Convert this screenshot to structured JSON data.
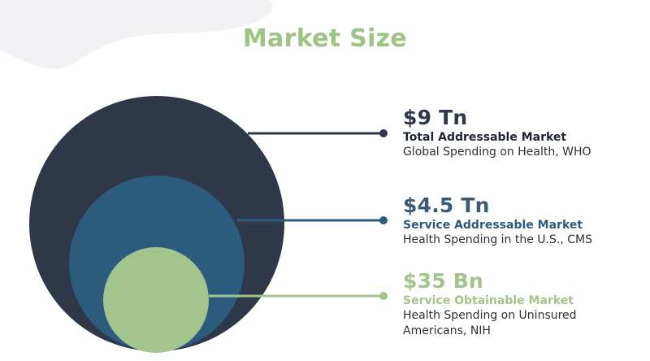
{
  "title": "Market Size",
  "colors": {
    "title": "#9cc485",
    "tam": "#2f3848",
    "sam": "#2b5b7d",
    "som": "#a3c48a",
    "background_blob": "#f2f2f4"
  },
  "markets": [
    {
      "value": "$9 Tn",
      "name": "Total Addressable Market",
      "source": "Global Spending on Health, WHO"
    },
    {
      "value": "$4.5 Tn",
      "name": "Service Addressable Market",
      "source": "Health Spending in the U.S., CMS"
    },
    {
      "value": "$35 Bn",
      "name": "Service Obtainable Market",
      "source": "Health Spending on Uninsured Americans, NIH"
    }
  ]
}
